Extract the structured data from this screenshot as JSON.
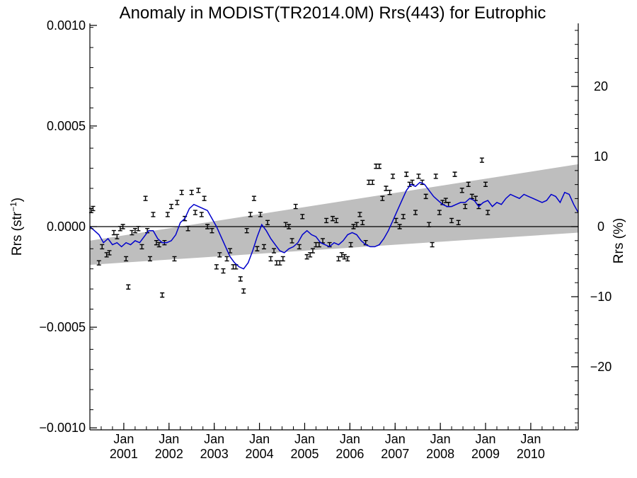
{
  "chart_data": {
    "type": "line",
    "title": "Anomaly in MODIST(TR2014.0M) Rrs(443) for Eutrophic",
    "ylabel_left": {
      "base": "Rrs (str",
      "sup": "−1",
      "close": ")"
    },
    "ylabel_right": "Rrs (%)",
    "xlim": [
      2000.25,
      2011.05
    ],
    "ylim": [
      -0.00101,
      0.00101
    ],
    "ylim_right_pct": [
      -29,
      29
    ],
    "left_ticks": [
      {
        "v": 0.001,
        "label": "0.0010"
      },
      {
        "v": 0.0005,
        "label": "0.0005"
      },
      {
        "v": 0,
        "label": "0.0000"
      },
      {
        "v": -0.0005,
        "label": "−0.0005"
      },
      {
        "v": -0.001,
        "label": "−0.0010"
      }
    ],
    "right_ticks": [
      {
        "v": 20,
        "label": "20"
      },
      {
        "v": 10,
        "label": "10"
      },
      {
        "v": 0,
        "label": "0"
      },
      {
        "v": -10,
        "label": "−10"
      },
      {
        "v": -20,
        "label": "−20"
      }
    ],
    "x_ticks": [
      {
        "x": 2001.0,
        "month": "Jan",
        "year": "2001"
      },
      {
        "x": 2002.0,
        "month": "Jan",
        "year": "2002"
      },
      {
        "x": 2003.0,
        "month": "Jan",
        "year": "2003"
      },
      {
        "x": 2004.0,
        "month": "Jan",
        "year": "2004"
      },
      {
        "x": 2005.0,
        "month": "Jan",
        "year": "2005"
      },
      {
        "x": 2006.0,
        "month": "Jan",
        "year": "2006"
      },
      {
        "x": 2007.0,
        "month": "Jan",
        "year": "2007"
      },
      {
        "x": 2008.0,
        "month": "Jan",
        "year": "2008"
      },
      {
        "x": 2009.0,
        "month": "Jan",
        "year": "2009"
      },
      {
        "x": 2010.0,
        "month": "Jan",
        "year": "2010"
      }
    ],
    "band": {
      "start": [
        2000.25,
        -7e-05,
        -0.00019
      ],
      "end": [
        2011.05,
        0.00031,
        -3e-05
      ],
      "color": "#bebebe"
    },
    "zero_line_color": "#000000",
    "running_mean_color": "#0000cc",
    "running_mean": [
      [
        2000.25,
        0.0
      ],
      [
        2000.35,
        -2e-05
      ],
      [
        2000.45,
        -4e-05
      ],
      [
        2000.55,
        -8e-05
      ],
      [
        2000.65,
        -6e-05
      ],
      [
        2000.75,
        -9e-05
      ],
      [
        2000.85,
        -8e-05
      ],
      [
        2000.95,
        -0.0001
      ],
      [
        2001.05,
        -8e-05
      ],
      [
        2001.15,
        -9e-05
      ],
      [
        2001.25,
        -7e-05
      ],
      [
        2001.35,
        -8e-05
      ],
      [
        2001.45,
        -5e-05
      ],
      [
        2001.55,
        -2e-05
      ],
      [
        2001.65,
        -2e-05
      ],
      [
        2001.75,
        -6e-05
      ],
      [
        2001.85,
        -8e-05
      ],
      [
        2001.95,
        -8e-05
      ],
      [
        2002.05,
        -7e-05
      ],
      [
        2002.15,
        -4e-05
      ],
      [
        2002.25,
        2e-05
      ],
      [
        2002.35,
        4e-05
      ],
      [
        2002.45,
        9e-05
      ],
      [
        2002.55,
        0.00011
      ],
      [
        2002.65,
        0.0001
      ],
      [
        2002.75,
        9e-05
      ],
      [
        2002.85,
        8e-05
      ],
      [
        2002.95,
        4e-05
      ],
      [
        2003.05,
        0.0
      ],
      [
        2003.15,
        -5e-05
      ],
      [
        2003.25,
        -0.0001
      ],
      [
        2003.35,
        -0.00015
      ],
      [
        2003.45,
        -0.00018
      ],
      [
        2003.55,
        -0.0002
      ],
      [
        2003.65,
        -0.00021
      ],
      [
        2003.75,
        -0.00018
      ],
      [
        2003.85,
        -0.00012
      ],
      [
        2003.95,
        -5e-05
      ],
      [
        2004.05,
        1e-05
      ],
      [
        2004.15,
        -2e-05
      ],
      [
        2004.25,
        -6e-05
      ],
      [
        2004.35,
        -9e-05
      ],
      [
        2004.45,
        -0.00012
      ],
      [
        2004.55,
        -0.00013
      ],
      [
        2004.65,
        -0.00011
      ],
      [
        2004.75,
        -0.0001
      ],
      [
        2004.85,
        -8e-05
      ],
      [
        2004.95,
        -4e-05
      ],
      [
        2005.05,
        -2e-05
      ],
      [
        2005.15,
        -4e-05
      ],
      [
        2005.25,
        -5e-05
      ],
      [
        2005.35,
        -8e-05
      ],
      [
        2005.45,
        -9e-05
      ],
      [
        2005.55,
        -0.0001
      ],
      [
        2005.65,
        -8e-05
      ],
      [
        2005.75,
        -9e-05
      ],
      [
        2005.85,
        -7e-05
      ],
      [
        2005.95,
        -4e-05
      ],
      [
        2006.05,
        -3e-05
      ],
      [
        2006.15,
        -4e-05
      ],
      [
        2006.25,
        -7e-05
      ],
      [
        2006.35,
        -9e-05
      ],
      [
        2006.45,
        -0.0001
      ],
      [
        2006.55,
        -0.0001
      ],
      [
        2006.65,
        -9e-05
      ],
      [
        2006.75,
        -6e-05
      ],
      [
        2006.85,
        -2e-05
      ],
      [
        2006.95,
        3e-05
      ],
      [
        2007.05,
        8e-05
      ],
      [
        2007.15,
        0.00013
      ],
      [
        2007.25,
        0.00018
      ],
      [
        2007.35,
        0.00021
      ],
      [
        2007.45,
        0.0002
      ],
      [
        2007.55,
        0.00022
      ],
      [
        2007.65,
        0.00021
      ],
      [
        2007.75,
        0.00018
      ],
      [
        2007.85,
        0.00015
      ],
      [
        2007.95,
        0.00013
      ],
      [
        2008.05,
        0.00011
      ],
      [
        2008.15,
        0.0001
      ],
      [
        2008.25,
        0.0001
      ],
      [
        2008.35,
        0.00011
      ],
      [
        2008.45,
        0.00012
      ],
      [
        2008.55,
        0.00012
      ],
      [
        2008.65,
        0.00014
      ],
      [
        2008.75,
        0.00013
      ],
      [
        2008.85,
        0.0001
      ],
      [
        2008.95,
        0.00012
      ],
      [
        2009.05,
        0.00013
      ],
      [
        2009.15,
        0.0001
      ],
      [
        2009.25,
        0.00012
      ],
      [
        2009.35,
        0.00011
      ],
      [
        2009.45,
        0.00014
      ],
      [
        2009.55,
        0.00016
      ],
      [
        2009.65,
        0.00015
      ],
      [
        2009.75,
        0.00014
      ],
      [
        2009.85,
        0.00016
      ],
      [
        2009.95,
        0.00015
      ],
      [
        2010.05,
        0.00014
      ],
      [
        2010.15,
        0.00013
      ],
      [
        2010.25,
        0.00012
      ],
      [
        2010.35,
        0.00013
      ],
      [
        2010.45,
        0.00016
      ],
      [
        2010.55,
        0.00015
      ],
      [
        2010.65,
        0.00012
      ],
      [
        2010.75,
        0.00017
      ],
      [
        2010.85,
        0.00016
      ],
      [
        2010.95,
        0.00011
      ],
      [
        2011.05,
        7e-05
      ]
    ],
    "points": [
      [
        2000.28,
        8e-05
      ],
      [
        2000.32,
        9e-05
      ],
      [
        2000.45,
        -0.00018
      ],
      [
        2000.52,
        -0.0001
      ],
      [
        2000.62,
        -0.00014
      ],
      [
        2000.68,
        -0.00013
      ],
      [
        2000.78,
        -3e-05
      ],
      [
        2000.85,
        -5e-05
      ],
      [
        2000.92,
        -1e-05
      ],
      [
        2000.98,
        0.0
      ],
      [
        2001.05,
        -0.00016
      ],
      [
        2001.1,
        -0.0003
      ],
      [
        2001.18,
        -3e-05
      ],
      [
        2001.25,
        -2e-05
      ],
      [
        2001.32,
        -1e-05
      ],
      [
        2001.4,
        -0.0001
      ],
      [
        2001.48,
        0.00014
      ],
      [
        2001.52,
        -2e-05
      ],
      [
        2001.58,
        -0.00016
      ],
      [
        2001.65,
        6e-05
      ],
      [
        2001.72,
        -8e-05
      ],
      [
        2001.78,
        -9e-05
      ],
      [
        2001.85,
        -0.00034
      ],
      [
        2001.9,
        -8e-05
      ],
      [
        2001.97,
        6e-05
      ],
      [
        2002.05,
        0.0001
      ],
      [
        2002.12,
        -0.00016
      ],
      [
        2002.18,
        0.00012
      ],
      [
        2002.28,
        0.00017
      ],
      [
        2002.35,
        4e-05
      ],
      [
        2002.42,
        -1e-05
      ],
      [
        2002.5,
        0.00017
      ],
      [
        2002.58,
        7e-05
      ],
      [
        2002.65,
        0.00018
      ],
      [
        2002.72,
        6e-05
      ],
      [
        2002.78,
        0.00014
      ],
      [
        2002.85,
        0.0
      ],
      [
        2002.95,
        -2e-05
      ],
      [
        2003.05,
        -0.0002
      ],
      [
        2003.12,
        -0.00014
      ],
      [
        2003.2,
        -0.00022
      ],
      [
        2003.28,
        -0.00016
      ],
      [
        2003.35,
        -0.00012
      ],
      [
        2003.42,
        -0.0002
      ],
      [
        2003.48,
        -0.0002
      ],
      [
        2003.58,
        -0.00026
      ],
      [
        2003.65,
        -0.00032
      ],
      [
        2003.72,
        -2e-05
      ],
      [
        2003.8,
        6e-05
      ],
      [
        2003.88,
        0.00014
      ],
      [
        2003.95,
        -0.00011
      ],
      [
        2004.02,
        6e-05
      ],
      [
        2004.1,
        -0.0001
      ],
      [
        2004.18,
        2e-05
      ],
      [
        2004.25,
        -0.00016
      ],
      [
        2004.32,
        -0.00012
      ],
      [
        2004.38,
        -0.00018
      ],
      [
        2004.45,
        -0.00018
      ],
      [
        2004.52,
        -0.00016
      ],
      [
        2004.58,
        1e-05
      ],
      [
        2004.65,
        0.0
      ],
      [
        2004.72,
        -7e-05
      ],
      [
        2004.8,
        0.0001
      ],
      [
        2004.88,
        -0.0001
      ],
      [
        2004.95,
        5e-05
      ],
      [
        2005.05,
        -0.00015
      ],
      [
        2005.12,
        -0.00014
      ],
      [
        2005.18,
        -0.00012
      ],
      [
        2005.25,
        -9e-05
      ],
      [
        2005.32,
        -9e-05
      ],
      [
        2005.4,
        -7e-05
      ],
      [
        2005.48,
        3e-05
      ],
      [
        2005.55,
        -9e-05
      ],
      [
        2005.62,
        4e-05
      ],
      [
        2005.7,
        3e-05
      ],
      [
        2005.75,
        -0.00016
      ],
      [
        2005.82,
        -0.00014
      ],
      [
        2005.88,
        -0.00015
      ],
      [
        2005.95,
        -0.00016
      ],
      [
        2006.02,
        -9e-05
      ],
      [
        2006.08,
        0.0
      ],
      [
        2006.15,
        1e-05
      ],
      [
        2006.22,
        6e-05
      ],
      [
        2006.28,
        2e-05
      ],
      [
        2006.35,
        -8e-05
      ],
      [
        2006.42,
        0.00022
      ],
      [
        2006.5,
        0.00022
      ],
      [
        2006.58,
        0.0003
      ],
      [
        2006.65,
        0.0003
      ],
      [
        2006.72,
        0.00014
      ],
      [
        2006.8,
        0.00019
      ],
      [
        2006.88,
        0.00017
      ],
      [
        2006.95,
        0.00025
      ],
      [
        2007.02,
        3e-05
      ],
      [
        2007.1,
        0.0
      ],
      [
        2007.18,
        5e-05
      ],
      [
        2007.25,
        0.00026
      ],
      [
        2007.32,
        0.00021
      ],
      [
        2007.38,
        0.00022
      ],
      [
        2007.45,
        7e-05
      ],
      [
        2007.52,
        0.00025
      ],
      [
        2007.6,
        0.00022
      ],
      [
        2007.68,
        0.00015
      ],
      [
        2007.75,
        1e-05
      ],
      [
        2007.82,
        -9e-05
      ],
      [
        2007.9,
        0.00025
      ],
      [
        2007.98,
        7e-05
      ],
      [
        2008.05,
        0.00012
      ],
      [
        2008.12,
        0.00013
      ],
      [
        2008.18,
        0.00011
      ],
      [
        2008.25,
        3e-05
      ],
      [
        2008.32,
        0.00026
      ],
      [
        2008.4,
        2e-05
      ],
      [
        2008.48,
        0.00018
      ],
      [
        2008.55,
        0.0001
      ],
      [
        2008.62,
        0.00021
      ],
      [
        2008.7,
        0.00015
      ],
      [
        2008.78,
        0.00014
      ],
      [
        2008.85,
        0.0001
      ],
      [
        2008.92,
        0.00033
      ],
      [
        2009.0,
        0.00021
      ],
      [
        2009.05,
        7e-05
      ]
    ]
  }
}
